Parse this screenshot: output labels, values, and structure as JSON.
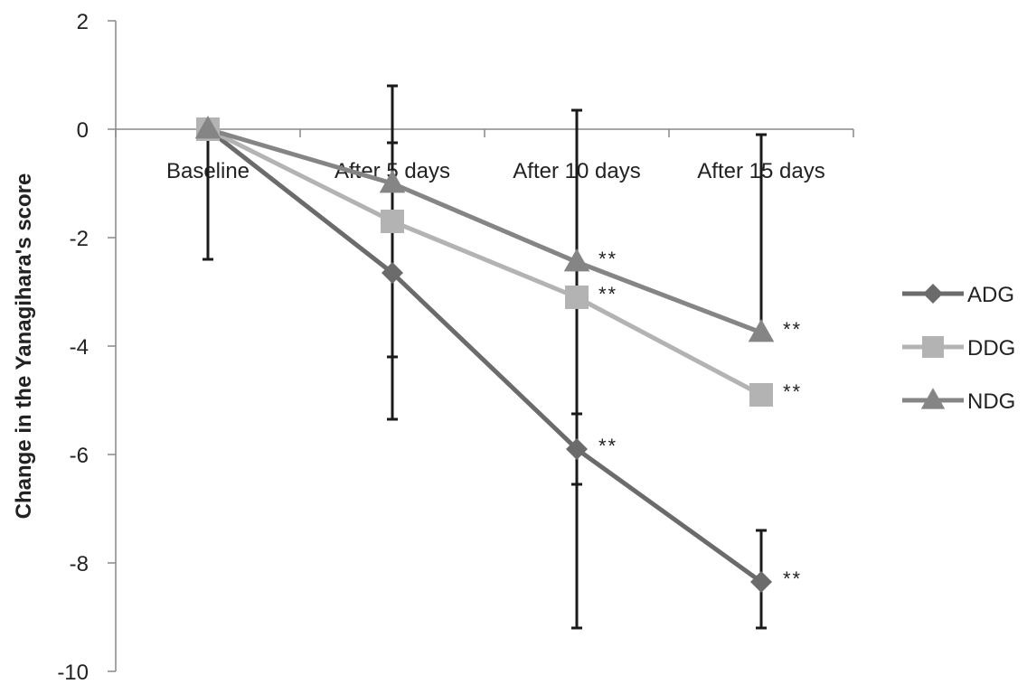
{
  "chart_data": {
    "type": "line",
    "title": "",
    "xlabel": "",
    "ylabel": "Change in the Yanagihara's score",
    "ylim": [
      -10,
      2
    ],
    "yticks": [
      2,
      0,
      -2,
      -4,
      -6,
      -8,
      -10
    ],
    "categories": [
      "Baseline",
      "After 5 days",
      "After 10 days",
      "After 15 days"
    ],
    "legend_position": "right",
    "grid": false,
    "significance_marker": "**",
    "series": [
      {
        "name": "ADG",
        "marker": "diamond",
        "color": "#6b6b6b",
        "values": [
          0,
          -2.65,
          -5.9,
          -8.35
        ],
        "error_low": [
          null,
          -5.35,
          -9.2,
          -9.2
        ],
        "error_high": [
          null,
          -0.25,
          -5.25,
          -7.4
        ],
        "significant": [
          false,
          false,
          true,
          true
        ]
      },
      {
        "name": "DDG",
        "marker": "square",
        "color": "#b3b3b3",
        "values": [
          0,
          -1.7,
          -3.1,
          -4.9
        ],
        "error_low": [
          null,
          null,
          null,
          null
        ],
        "error_high": [
          null,
          null,
          null,
          null
        ],
        "significant": [
          false,
          false,
          true,
          true
        ]
      },
      {
        "name": "NDG",
        "marker": "triangle",
        "color": "#858585",
        "values": [
          0,
          -1.0,
          -2.45,
          -3.75
        ],
        "error_low": [
          -2.4,
          -4.2,
          -6.55,
          null
        ],
        "error_high": [
          null,
          0.8,
          0.35,
          -0.1
        ],
        "significant": [
          false,
          false,
          true,
          true
        ]
      }
    ]
  }
}
